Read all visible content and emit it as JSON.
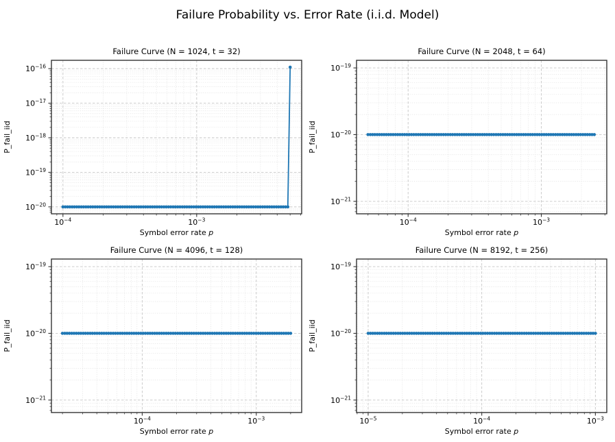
{
  "figure": {
    "suptitle": "Failure Probability vs. Error Rate (i.i.d. Model)",
    "background": "#ffffff"
  },
  "style": {
    "line_color": "#1f77b4",
    "spine_color": "#333333",
    "major_grid_color": "#c6c6c6",
    "minor_grid_color": "#dddddd",
    "text_color": "#000000"
  },
  "chart_data": [
    {
      "type": "line",
      "title": "Failure Curve (N = 1024, t = 32)",
      "params": {
        "N": 1024,
        "t": 32
      },
      "xlabel": "Symbol error rate p",
      "ylabel": "P_fail_iid",
      "x_scale": "log",
      "y_scale": "log",
      "xlim": [
        8.2e-05,
        0.0061
      ],
      "ylim": [
        6.3e-21,
        1.74e-16
      ],
      "xtick_exponents": [
        -4,
        -3
      ],
      "ytick_exponents": [
        -16,
        -17,
        -18,
        -19,
        -20
      ],
      "grid": "major+minor",
      "marker": "o",
      "series": {
        "name": "P_fail_iid",
        "spacing": "log",
        "x_start": 0.0001,
        "x_end": 0.005,
        "num_points": 100,
        "y_constant": 1e-20,
        "final_point_y": 1.1e-16
      }
    },
    {
      "type": "line",
      "title": "Failure Curve (N = 2048, t = 64)",
      "params": {
        "N": 2048,
        "t": 64
      },
      "xlabel": "Symbol error rate p",
      "ylabel": "P_fail_iid",
      "x_scale": "log",
      "y_scale": "log",
      "xlim": [
        4.1e-05,
        0.0031
      ],
      "ylim": [
        6.5e-22,
        1.3e-19
      ],
      "xtick_exponents": [
        -4,
        -3
      ],
      "ytick_exponents": [
        -19,
        -20,
        -21
      ],
      "grid": "major+minor",
      "marker": "o",
      "series": {
        "name": "P_fail_iid",
        "spacing": "log",
        "x_start": 5e-05,
        "x_end": 0.0025,
        "num_points": 100,
        "y_constant": 1e-20,
        "final_point_y": null
      }
    },
    {
      "type": "line",
      "title": "Failure Curve (N = 4096, t = 128)",
      "params": {
        "N": 4096,
        "t": 128
      },
      "xlabel": "Symbol error rate p",
      "ylabel": "P_fail_iid",
      "x_scale": "log",
      "y_scale": "log",
      "xlim": [
        1.6e-05,
        0.0025
      ],
      "ylim": [
        6.5e-22,
        1.3e-19
      ],
      "xtick_exponents": [
        -4,
        -3
      ],
      "ytick_exponents": [
        -19,
        -20,
        -21
      ],
      "grid": "major+minor",
      "marker": "o",
      "series": {
        "name": "P_fail_iid",
        "spacing": "log",
        "x_start": 2e-05,
        "x_end": 0.002,
        "num_points": 100,
        "y_constant": 1e-20,
        "final_point_y": null
      }
    },
    {
      "type": "line",
      "title": "Failure Curve (N = 8192, t = 256)",
      "params": {
        "N": 8192,
        "t": 256
      },
      "xlabel": "Symbol error rate p",
      "ylabel": "P_fail_iid",
      "x_scale": "log",
      "y_scale": "log",
      "xlim": [
        7.9e-06,
        0.00126
      ],
      "ylim": [
        6.5e-22,
        1.3e-19
      ],
      "xtick_exponents": [
        -5,
        -4,
        -3
      ],
      "ytick_exponents": [
        -19,
        -20,
        -21
      ],
      "grid": "major+minor",
      "marker": "o",
      "series": {
        "name": "P_fail_iid",
        "spacing": "log",
        "x_start": 1e-05,
        "x_end": 0.001,
        "num_points": 100,
        "y_constant": 1e-20,
        "final_point_y": null
      }
    }
  ]
}
